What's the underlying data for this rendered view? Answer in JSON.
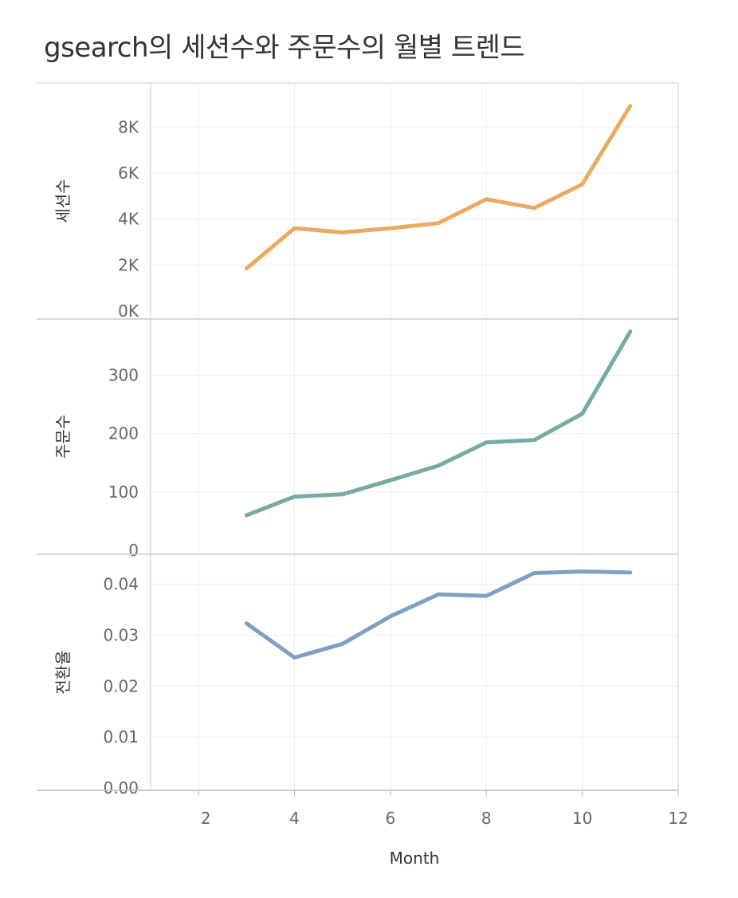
{
  "chart_data": {
    "type": "line",
    "title": "gsearch의 세션수와 주문수의 월별 트렌드",
    "xlabel": "Month",
    "x": [
      3,
      4,
      5,
      6,
      7,
      8,
      9,
      10,
      11
    ],
    "xlim": [
      1,
      12
    ],
    "xticks": [
      2,
      4,
      6,
      8,
      10,
      12
    ],
    "grid": true,
    "panels": [
      {
        "name": "sessions",
        "ylabel": "세션수",
        "color": "#EBAA62",
        "ylim": [
          0,
          9500
        ],
        "yticks": [
          0,
          2000,
          4000,
          6000,
          8000
        ],
        "yticklabels": [
          "0K",
          "2K",
          "4K",
          "6K",
          "8K"
        ],
        "values": [
          1850,
          3600,
          3420,
          3600,
          3820,
          4860,
          4480,
          5510,
          8920
        ]
      },
      {
        "name": "orders",
        "ylabel": "주문수",
        "color": "#79A9A5",
        "ylim": [
          0,
          380
        ],
        "yticks": [
          0,
          100,
          200,
          300
        ],
        "yticklabels": [
          "0",
          "100",
          "200",
          "300"
        ],
        "values": [
          60,
          92,
          96,
          120,
          145,
          185,
          189,
          234,
          375
        ]
      },
      {
        "name": "conversion",
        "ylabel": "전환율",
        "color": "#7EA0C5",
        "ylim": [
          0,
          0.044
        ],
        "yticks": [
          0,
          0.01,
          0.02,
          0.03,
          0.04
        ],
        "yticklabels": [
          "0.00",
          "0.01",
          "0.02",
          "0.03",
          "0.04"
        ],
        "values": [
          0.0323,
          0.0256,
          0.0283,
          0.0337,
          0.038,
          0.0377,
          0.0422,
          0.0425,
          0.0423
        ]
      }
    ]
  }
}
